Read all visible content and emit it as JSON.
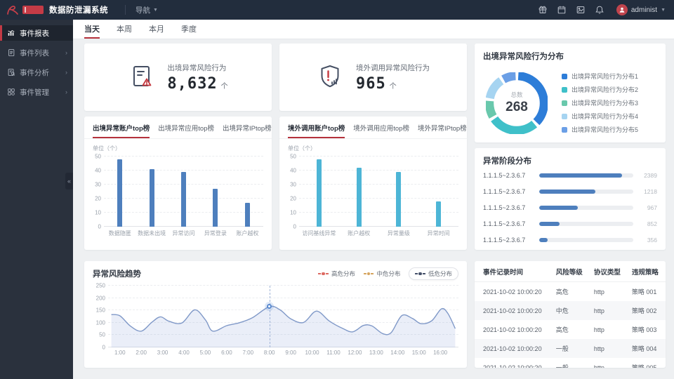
{
  "header": {
    "app_title": "数据防泄漏系统",
    "nav_label": "导航",
    "username": "administ",
    "icons": [
      "gift-icon",
      "calendar-icon",
      "picture-icon",
      "bell-icon"
    ]
  },
  "sidebar": {
    "items": [
      {
        "label": "事件报表",
        "icon": "report-chart-icon",
        "name": "report",
        "active": true,
        "has_children": false
      },
      {
        "label": "事件列表",
        "icon": "event-list-icon",
        "name": "list",
        "active": false,
        "has_children": true
      },
      {
        "label": "事件分析",
        "icon": "event-analysis-icon",
        "name": "analysis",
        "active": false,
        "has_children": true
      },
      {
        "label": "事件管理",
        "icon": "event-manage-icon",
        "name": "manage",
        "active": false,
        "has_children": true
      }
    ]
  },
  "period_tabs": {
    "items": [
      "当天",
      "本周",
      "本月",
      "季度"
    ],
    "names": [
      "today",
      "week",
      "month",
      "quarter"
    ],
    "active_index": 0
  },
  "stat_cards": [
    {
      "label": "出境异常风险行为",
      "value": "8,632",
      "unit": "个",
      "icon": "document-warning-icon"
    },
    {
      "label": "境外调用异常风险行为",
      "value": "965",
      "unit": "个",
      "icon": "shield-alert-icon"
    }
  ],
  "donut_card": {
    "title": "出境异常风险行为分布",
    "center_label": "总数",
    "center_value": "268",
    "chart": {
      "type": "pie",
      "legend": [
        "出境异常风险行为分布1",
        "出境异常风险行为分布2",
        "出境异常风险行为分布3",
        "出境异常风险行为分布4",
        "出境异常风险行为分布5"
      ],
      "percents": [
        38,
        28,
        11,
        14,
        9
      ],
      "colors": [
        "#2d7dd8",
        "#3fc0c9",
        "#69c8ac",
        "#a6d4f1",
        "#6b9fe6"
      ]
    }
  },
  "outbound_card": {
    "tabs": [
      "出境异常账户top榜",
      "出境异常应用top榜",
      "出境异常IPtop榜"
    ],
    "active_tab": 0,
    "chart": {
      "type": "bar",
      "unit_label": "单位（个）",
      "categories": [
        "数据隐匿",
        "数据未出境",
        "异常访问",
        "异常登录",
        "账户越权"
      ],
      "values": [
        48,
        41,
        39,
        27,
        17
      ],
      "ylim": [
        0,
        50
      ],
      "yticks": [
        0,
        10,
        20,
        30,
        40,
        50
      ],
      "color": "#4e7fbd"
    }
  },
  "overseas_card": {
    "tabs": [
      "境外调用账户top榜",
      "境外调用应用top榜",
      "境外异常IPtop榜"
    ],
    "active_tab": 0,
    "chart": {
      "type": "bar",
      "unit_label": "单位（个）",
      "categories": [
        "访问基线异常",
        "账户越权",
        "异常量级",
        "异常时间"
      ],
      "values": [
        48,
        42,
        39,
        18
      ],
      "ylim": [
        0,
        50
      ],
      "yticks": [
        0,
        10,
        20,
        30,
        40,
        50
      ],
      "color": "#4db5d6"
    }
  },
  "stage_card": {
    "title": "异常阶段分布",
    "bar_color": "#4e7fbd",
    "rows": [
      {
        "label": "1.1.1.5~2.3.6.7",
        "value": "2389",
        "pct": 88
      },
      {
        "label": "1.1.1.5~2.3.6.7",
        "value": "1218",
        "pct": 60
      },
      {
        "label": "1.1.1.5~2.3.6.7",
        "value": "967",
        "pct": 41
      },
      {
        "label": "1.1.1.5~2.3.6.7",
        "value": "852",
        "pct": 22
      },
      {
        "label": "1.1.1.5~2.3.6.7",
        "value": "356",
        "pct": 9
      }
    ]
  },
  "trend_card": {
    "title": "异常风险趋势",
    "legend": [
      {
        "label": "高危分布",
        "color": "#dd6a62",
        "pill": false
      },
      {
        "label": "中危分布",
        "color": "#d6a55f",
        "pill": false
      },
      {
        "label": "低危分布",
        "color": "#46526b",
        "pill": true
      }
    ],
    "chart": {
      "type": "line",
      "x_labels": [
        "1:00",
        "2:00",
        "3:00",
        "4:00",
        "5:00",
        "6:00",
        "7:00",
        "8:00",
        "9:00",
        "10:00",
        "11:00",
        "12:00",
        "13:00",
        "14:00",
        "15:00",
        "16:00"
      ],
      "points": [
        [
          0.6,
          133
        ],
        [
          1,
          128
        ],
        [
          1.5,
          86
        ],
        [
          2,
          66
        ],
        [
          2.5,
          102
        ],
        [
          2.9,
          124
        ],
        [
          3.3,
          106
        ],
        [
          3.9,
          99
        ],
        [
          4.5,
          152
        ],
        [
          5,
          112
        ],
        [
          5.35,
          66
        ],
        [
          6,
          88
        ],
        [
          6.6,
          100
        ],
        [
          7.2,
          120
        ],
        [
          8,
          165
        ],
        [
          8.5,
          152
        ],
        [
          9,
          116
        ],
        [
          9.6,
          101
        ],
        [
          10.2,
          147
        ],
        [
          10.8,
          107
        ],
        [
          11.4,
          78
        ],
        [
          11.9,
          63
        ],
        [
          12.4,
          89
        ],
        [
          12.8,
          87
        ],
        [
          13.3,
          56
        ],
        [
          13.7,
          60
        ],
        [
          14.2,
          129
        ],
        [
          14.7,
          117
        ],
        [
          15.1,
          96
        ],
        [
          15.6,
          108
        ],
        [
          16.05,
          156
        ],
        [
          16.35,
          138
        ],
        [
          16.7,
          76
        ]
      ],
      "x_range": [
        0.45,
        16.85
      ],
      "yticks": [
        0,
        50,
        100,
        150,
        200,
        250
      ],
      "ylim": [
        0,
        250
      ],
      "line_color": "#8099c8",
      "fill_color": "rgba(123,152,214,0.16)",
      "marker": {
        "x": 8,
        "value": 165
      }
    }
  },
  "records_card": {
    "headers": [
      "事件记录时间",
      "风险等级",
      "协议类型",
      "违规策略"
    ],
    "rows": [
      [
        "2021-10-02 10:00:20",
        "高危",
        "http",
        "策略 001"
      ],
      [
        "2021-10-02 10:00:20",
        "中危",
        "http",
        "策略 002"
      ],
      [
        "2021-10-02 10:00:20",
        "高危",
        "http",
        "策略 003"
      ],
      [
        "2021-10-02 10:00:20",
        "一般",
        "http",
        "策略 004"
      ],
      [
        "2021-10-02 10:00:20",
        "一般",
        "http",
        "策略 005"
      ]
    ]
  }
}
